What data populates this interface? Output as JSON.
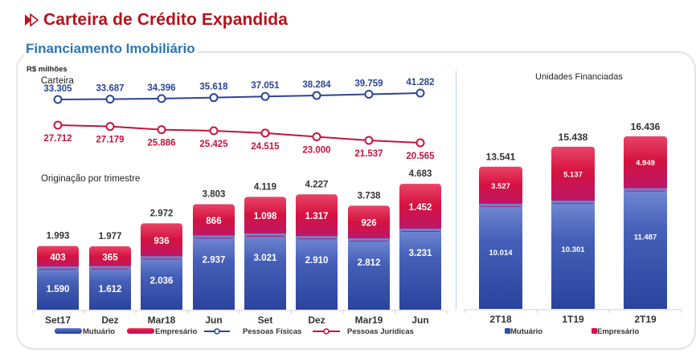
{
  "header": {
    "title": "Carteira de Crédito Expandida",
    "title_icon": "double-arrow-right-icon",
    "subtitle": "Financiamento Imobiliário"
  },
  "colors": {
    "title": "#b5121b",
    "subtitle": "#2e75b6",
    "mutuario": "#2f4ea3",
    "empresario": "#d4124a",
    "pessoas_fisicas": "#2b4596",
    "pessoas_juridicas": "#c4143c"
  },
  "chart_data": [
    {
      "id": "carteira",
      "type": "line",
      "title": "Carteira",
      "unit": "R$ milhões",
      "categories": [
        "Set17",
        "Dez",
        "Mar18",
        "Jun",
        "Set",
        "Dez",
        "Mar19",
        "Jun"
      ],
      "series": [
        {
          "name": "Pessoas Físicas",
          "values": [
            33305,
            33687,
            34396,
            35618,
            37051,
            38284,
            39759,
            41282
          ],
          "labels": [
            "33.305",
            "33.687",
            "34.396",
            "35.618",
            "37.051",
            "38.284",
            "39.759",
            "41.282"
          ]
        },
        {
          "name": "Pessoas Jurídicas",
          "values": [
            27712,
            27179,
            25886,
            25425,
            24515,
            23000,
            21537,
            20565
          ],
          "labels": [
            "27.712",
            "27.179",
            "25.886",
            "25.425",
            "24.515",
            "23.000",
            "21.537",
            "20.565"
          ]
        }
      ],
      "grid": false,
      "legend": "bottom"
    },
    {
      "id": "originacao",
      "type": "bar",
      "stacked": true,
      "title": "Originação por trimestre",
      "categories": [
        "Set17",
        "Dez",
        "Mar18",
        "Jun",
        "Set",
        "Dez",
        "Mar19",
        "Jun"
      ],
      "series": [
        {
          "name": "Mutuário",
          "values": [
            1590,
            1612,
            2036,
            2937,
            3021,
            2910,
            2812,
            3231
          ],
          "labels": [
            "1.590",
            "1.612",
            "2.036",
            "2.937",
            "3.021",
            "2.910",
            "2.812",
            "3.231"
          ]
        },
        {
          "name": "Empresário",
          "values": [
            403,
            365,
            936,
            866,
            1098,
            1317,
            926,
            1452
          ],
          "labels": [
            "403",
            "365",
            "936",
            "866",
            "1.098",
            "1.317",
            "926",
            "1.452"
          ]
        }
      ],
      "totals": [
        1993,
        1977,
        2972,
        3803,
        4119,
        4227,
        3738,
        4683
      ],
      "total_labels": [
        "1.993",
        "1.977",
        "2.972",
        "3.803",
        "4.119",
        "4.227",
        "3.738",
        "4.683"
      ],
      "grid": false,
      "legend": "bottom"
    },
    {
      "id": "unidades",
      "type": "bar",
      "stacked": true,
      "title": "Unidades Financiadas",
      "categories": [
        "2T18",
        "1T19",
        "2T19"
      ],
      "series": [
        {
          "name": "Mutuário",
          "values": [
            10014,
            10301,
            11487
          ],
          "labels": [
            "10.014",
            "10.301",
            "11.487"
          ]
        },
        {
          "name": "Empresário",
          "values": [
            3527,
            5137,
            4949
          ],
          "labels": [
            "3.527",
            "5.137",
            "4.949"
          ]
        }
      ],
      "totals": [
        13541,
        15438,
        16436
      ],
      "total_labels": [
        "13.541",
        "15.438",
        "16.436"
      ],
      "grid": false,
      "legend": "bottom"
    }
  ],
  "legend_left": [
    {
      "name": "Mutuário",
      "kind": "bar"
    },
    {
      "name": "Empresário",
      "kind": "bar"
    },
    {
      "name": "Pessoas Físicas",
      "kind": "line"
    },
    {
      "name": "Pessoas Jurídicas",
      "kind": "line"
    }
  ],
  "legend_right": [
    {
      "name": "Mutuário"
    },
    {
      "name": "Empresário"
    }
  ]
}
